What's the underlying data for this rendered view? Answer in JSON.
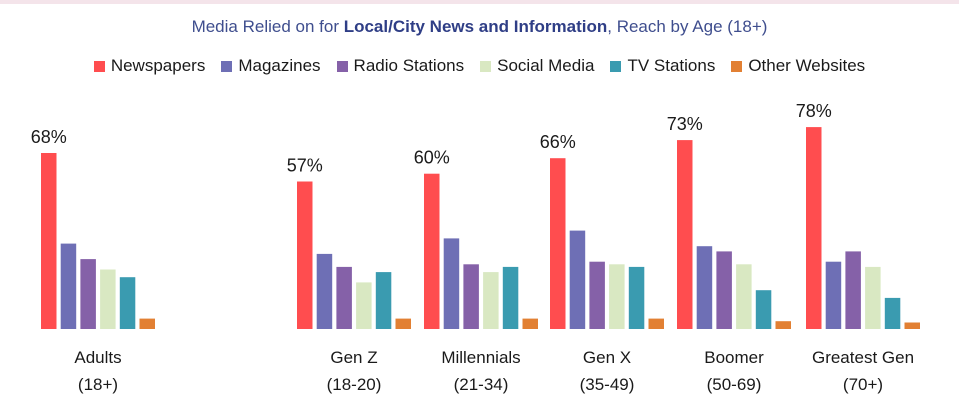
{
  "title": {
    "prefix": "Media Relied on for ",
    "bold": "Local/City News and Information",
    "suffix": ",  Reach by Age (18+)"
  },
  "chart_data": {
    "type": "bar",
    "categories": [
      [
        "Adults",
        "(18+)"
      ],
      [
        "Gen Z",
        "(18-20)"
      ],
      [
        "Millennials",
        "(21-34)"
      ],
      [
        "Gen X",
        "(35-49)"
      ],
      [
        "Boomer",
        "(50-69)"
      ],
      [
        "Greatest Gen",
        "(70+)"
      ]
    ],
    "series": [
      {
        "name": "Newspapers",
        "color": "#ff4d4f",
        "values": [
          68,
          57,
          60,
          66,
          73,
          78
        ],
        "labeled": true
      },
      {
        "name": "Magazines",
        "color": "#6e6fb5",
        "values": [
          33,
          29,
          35,
          38,
          32,
          26
        ]
      },
      {
        "name": "Radio Stations",
        "color": "#8561a8",
        "values": [
          27,
          24,
          25,
          26,
          30,
          30
        ]
      },
      {
        "name": "Social Media",
        "color": "#d9e8c2",
        "values": [
          23,
          18,
          22,
          25,
          25,
          24
        ]
      },
      {
        "name": "TV Stations",
        "color": "#3a9bb0",
        "values": [
          20,
          22,
          24,
          24,
          15,
          12
        ]
      },
      {
        "name": "Other Websites",
        "color": "#e28033",
        "values": [
          4,
          4,
          4,
          4,
          3,
          2.5
        ]
      }
    ],
    "data_labels": [
      "68%",
      "57%",
      "60%",
      "66%",
      "73%",
      "78%"
    ],
    "ylim": [
      0,
      100
    ],
    "grid": false,
    "legend_position": "top"
  }
}
